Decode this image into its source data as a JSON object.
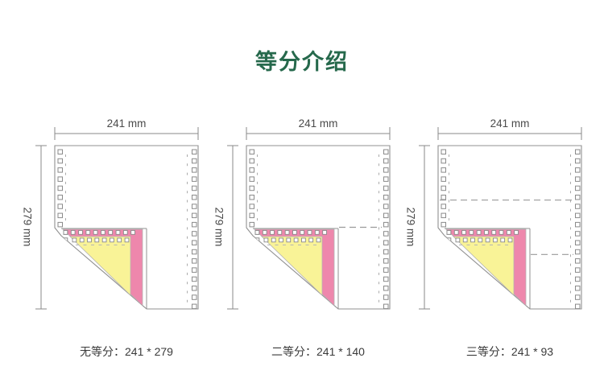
{
  "title": "等分介绍",
  "theme": {
    "title_color": "#26694c",
    "pink": "#ee87ac",
    "yellow": "#f9f397",
    "paper_line": "#919191",
    "hole_line": "#8a8a8a",
    "dash_color": "#9a9a9a",
    "dim_color": "#4a4a4a"
  },
  "panels": [
    {
      "id": "no-division",
      "width_label": "241 mm",
      "height_label": "279 mm",
      "divisions": 1,
      "caption": "无等分：241 * 279"
    },
    {
      "id": "two-equal-parts",
      "width_label": "241 mm",
      "height_label": "279 mm",
      "divisions": 2,
      "caption": "二等分：241 * 140"
    },
    {
      "id": "three-equal-parts",
      "width_label": "241 mm",
      "height_label": "279 mm",
      "divisions": 3,
      "caption": "三等分：241 * 93"
    }
  ]
}
